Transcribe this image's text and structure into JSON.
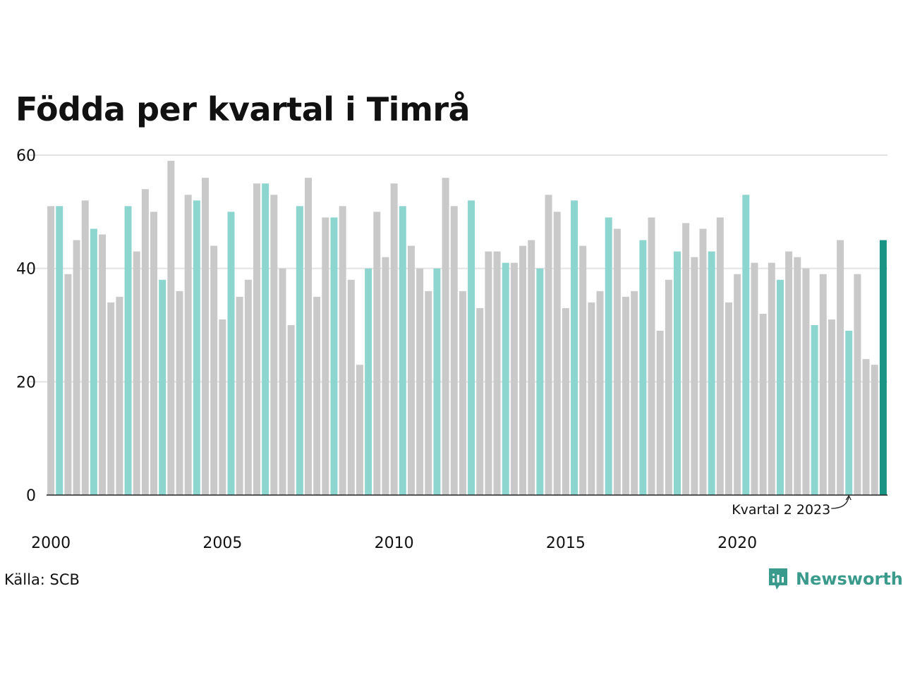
{
  "title": "Födda per kvartal i Timrå",
  "source": "Källa: SCB",
  "brand": "Newsworthy",
  "chart_data": {
    "type": "bar",
    "x_start": "2000 Q1",
    "quarters_per_year": 4,
    "values": [
      51,
      51,
      39,
      45,
      52,
      47,
      46,
      34,
      35,
      51,
      43,
      54,
      50,
      38,
      59,
      36,
      53,
      52,
      56,
      44,
      31,
      50,
      35,
      38,
      55,
      55,
      53,
      40,
      30,
      51,
      56,
      35,
      49,
      49,
      51,
      38,
      23,
      40,
      50,
      42,
      55,
      51,
      44,
      40,
      36,
      40,
      56,
      51,
      36,
      52,
      33,
      43,
      43,
      41,
      41,
      44,
      45,
      40,
      53,
      50,
      33,
      52,
      44,
      34,
      36,
      49,
      47,
      35,
      36,
      45,
      49,
      29,
      38,
      43,
      48,
      42,
      47,
      43,
      49,
      34,
      39,
      53,
      41,
      32,
      41,
      38,
      43,
      42,
      40,
      30,
      39,
      31,
      45,
      29,
      39,
      24,
      23,
      45
    ],
    "highlight_quarter": 2,
    "ylim": [
      0,
      60
    ],
    "yticks": [
      0,
      20,
      40,
      60
    ],
    "xticks": [
      "2000",
      "2005",
      "2010",
      "2015",
      "2020"
    ],
    "annotation": "Kvartal 2 2023",
    "grid": true,
    "colors": {
      "bar": "#c9c9c9",
      "highlight": "#8dd5cf",
      "latest": "#1a9485",
      "grid": "#e3e3e3",
      "axis": "#222222"
    }
  }
}
